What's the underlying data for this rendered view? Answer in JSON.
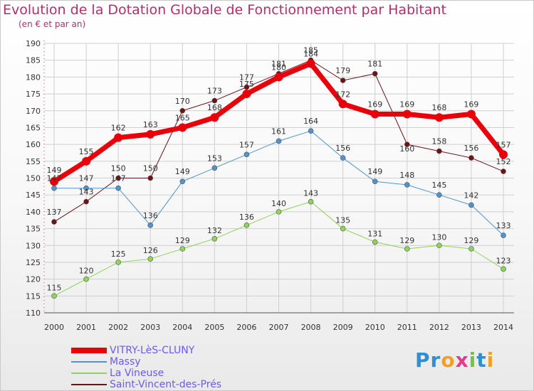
{
  "title": "Evolution de la Dotation Globale de Fonctionnement par Habitant",
  "subtitle": "(en € et par an)",
  "colors": {
    "title": "#b0306a",
    "grid": "#cfcfcf",
    "axis": "#555555"
  },
  "logo": {
    "text": "Proxiti",
    "letters": [
      {
        "ch": "P",
        "color": "#2f8fd0"
      },
      {
        "ch": "r",
        "color": "#2f8fd0"
      },
      {
        "ch": "o",
        "color": "#f2a11e"
      },
      {
        "ch": "x",
        "color": "#e63a8c"
      },
      {
        "ch": "i",
        "color": "#7ac142"
      },
      {
        "ch": "t",
        "color": "#2f8fd0"
      },
      {
        "ch": "i",
        "color": "#f2a11e"
      }
    ]
  },
  "chart_data": {
    "type": "line",
    "title": "Evolution de la Dotation Globale de Fonctionnement par Habitant",
    "subtitle": "(en € et par an)",
    "xlabel": "",
    "ylabel": "",
    "x": [
      "2000",
      "2001",
      "2002",
      "2003",
      "2004",
      "2005",
      "2006",
      "2007",
      "2008",
      "2009",
      "2010",
      "2011",
      "2012",
      "2013",
      "2014"
    ],
    "ylim": [
      110,
      190
    ],
    "yticks": [
      110,
      115,
      120,
      125,
      130,
      135,
      140,
      145,
      150,
      155,
      160,
      165,
      170,
      175,
      180,
      185,
      190
    ],
    "grid": true,
    "legend_position": "bottom-left",
    "series": [
      {
        "name": "VITRY-LèS-CLUNY",
        "color": "#e8000b",
        "width": 7,
        "marker": 6,
        "values": [
          149,
          155,
          162,
          163,
          165,
          168,
          175,
          180,
          184,
          172,
          169,
          169,
          168,
          169,
          157
        ],
        "labels": [
          "149",
          "155",
          "162",
          "163",
          "165",
          "168",
          "175",
          "180",
          "184",
          "172",
          "169",
          "169",
          "168",
          "169",
          "157"
        ]
      },
      {
        "name": "Massy",
        "color": "#4f94cd",
        "width": 1,
        "marker": 3.5,
        "values": [
          147,
          147,
          147,
          136,
          149,
          153,
          157,
          161,
          164,
          156,
          149,
          148,
          145,
          142,
          133
        ],
        "labels": [
          "147",
          "147",
          "147",
          "136",
          "149",
          "153",
          "157",
          "161",
          "164",
          "156",
          "149",
          "148",
          "145",
          "142",
          "133"
        ]
      },
      {
        "name": "La Vineuse",
        "color": "#8fd35a",
        "width": 1,
        "marker": 3.5,
        "values": [
          115,
          120,
          125,
          126,
          129,
          132,
          136,
          140,
          143,
          135,
          131,
          129,
          130,
          129,
          123
        ],
        "labels": [
          "115",
          "120",
          "125",
          "126",
          "129",
          "132",
          "136",
          "140",
          "143",
          "135",
          "131",
          "129",
          "130",
          "129",
          "123"
        ]
      },
      {
        "name": "Saint-Vincent-des-Prés",
        "color": "#6b1418",
        "width": 1,
        "marker": 3.5,
        "values": [
          137,
          143,
          150,
          150,
          170,
          173,
          177,
          181,
          185,
          179,
          181,
          160,
          158,
          156,
          152
        ],
        "labels": [
          "137",
          "143",
          "150",
          "150",
          "170",
          "173",
          "177",
          "181",
          "185",
          "179",
          "181",
          "160",
          "158",
          "156",
          "152"
        ]
      }
    ]
  }
}
